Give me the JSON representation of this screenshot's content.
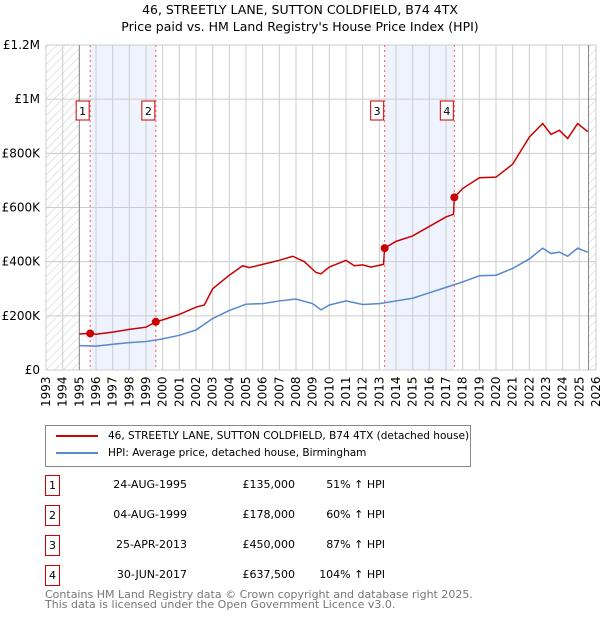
{
  "chart_data": {
    "type": "line",
    "title": "46, STREETLY LANE, SUTTON COLDFIELD, B74 4TX",
    "subtitle": "Price paid vs. HM Land Registry's House Price Index (HPI)",
    "xlim": [
      1993,
      2026
    ],
    "ylim": [
      0,
      1200000
    ],
    "x_ticks": [
      "1993",
      "1994",
      "1995",
      "1996",
      "1997",
      "1998",
      "1999",
      "2000",
      "2001",
      "2002",
      "2003",
      "2004",
      "2005",
      "2006",
      "2007",
      "2008",
      "2009",
      "2010",
      "2011",
      "2012",
      "2013",
      "2014",
      "2015",
      "2016",
      "2017",
      "2018",
      "2019",
      "2020",
      "2021",
      "2022",
      "2023",
      "2024",
      "2025",
      "2026"
    ],
    "y_ticks": [
      {
        "v": 0,
        "label": "£0"
      },
      {
        "v": 200000,
        "label": "£200K"
      },
      {
        "v": 400000,
        "label": "£400K"
      },
      {
        "v": 600000,
        "label": "£600K"
      },
      {
        "v": 800000,
        "label": "£800K"
      },
      {
        "v": 1000000,
        "label": "£1M"
      },
      {
        "v": 1200000,
        "label": "£1.2M"
      }
    ],
    "grid": true,
    "series": [
      {
        "name": "46, STREETLY LANE, SUTTON COLDFIELD, B74 4TX (detached house)",
        "color": "#cc0000",
        "points": [
          [
            1995.0,
            133000
          ],
          [
            1995.65,
            135000
          ],
          [
            1996,
            132000
          ],
          [
            1997,
            140000
          ],
          [
            1998,
            150000
          ],
          [
            1999,
            158000
          ],
          [
            1999.6,
            178000
          ],
          [
            2000,
            185000
          ],
          [
            2001,
            205000
          ],
          [
            2002,
            232000
          ],
          [
            2002.5,
            240000
          ],
          [
            2003,
            300000
          ],
          [
            2004,
            350000
          ],
          [
            2004.8,
            385000
          ],
          [
            2005.2,
            378000
          ],
          [
            2006,
            390000
          ],
          [
            2007,
            405000
          ],
          [
            2007.8,
            420000
          ],
          [
            2008.5,
            400000
          ],
          [
            2009.2,
            360000
          ],
          [
            2009.5,
            355000
          ],
          [
            2010,
            380000
          ],
          [
            2011,
            405000
          ],
          [
            2011.5,
            385000
          ],
          [
            2012,
            388000
          ],
          [
            2012.5,
            380000
          ],
          [
            2013.25,
            390000
          ],
          [
            2013.32,
            450000
          ],
          [
            2014,
            475000
          ],
          [
            2015,
            495000
          ],
          [
            2016,
            530000
          ],
          [
            2017,
            565000
          ],
          [
            2017.45,
            575000
          ],
          [
            2017.5,
            637500
          ],
          [
            2018,
            670000
          ],
          [
            2019,
            710000
          ],
          [
            2020,
            712000
          ],
          [
            2021,
            760000
          ],
          [
            2022,
            860000
          ],
          [
            2022.8,
            910000
          ],
          [
            2023.3,
            870000
          ],
          [
            2023.8,
            885000
          ],
          [
            2024.3,
            855000
          ],
          [
            2024.9,
            910000
          ],
          [
            2025.5,
            880000
          ]
        ]
      },
      {
        "name": "HPI: Average price, detached house, Birmingham",
        "color": "#5588cc",
        "points": [
          [
            1995.0,
            90000
          ],
          [
            1996,
            88000
          ],
          [
            1997,
            95000
          ],
          [
            1998,
            101000
          ],
          [
            1999,
            105000
          ],
          [
            2000,
            115000
          ],
          [
            2001,
            128000
          ],
          [
            2002,
            148000
          ],
          [
            2003,
            190000
          ],
          [
            2004,
            220000
          ],
          [
            2005,
            243000
          ],
          [
            2006,
            245000
          ],
          [
            2007,
            255000
          ],
          [
            2008,
            262000
          ],
          [
            2009,
            245000
          ],
          [
            2009.5,
            222000
          ],
          [
            2010,
            240000
          ],
          [
            2011,
            255000
          ],
          [
            2012,
            242000
          ],
          [
            2013,
            245000
          ],
          [
            2014,
            255000
          ],
          [
            2015,
            265000
          ],
          [
            2016,
            285000
          ],
          [
            2017,
            305000
          ],
          [
            2018,
            325000
          ],
          [
            2019,
            348000
          ],
          [
            2020,
            350000
          ],
          [
            2021,
            375000
          ],
          [
            2022,
            410000
          ],
          [
            2022.8,
            450000
          ],
          [
            2023.3,
            430000
          ],
          [
            2023.8,
            435000
          ],
          [
            2024.3,
            420000
          ],
          [
            2024.9,
            450000
          ],
          [
            2025.5,
            435000
          ]
        ]
      }
    ],
    "sales": [
      {
        "n": "1",
        "x": 1995.65,
        "y": 135000
      },
      {
        "n": "2",
        "x": 1999.59,
        "y": 178000
      },
      {
        "n": "3",
        "x": 2013.32,
        "y": 450000
      },
      {
        "n": "4",
        "x": 2017.5,
        "y": 637500
      }
    ]
  },
  "legend": {
    "red": "46, STREETLY LANE, SUTTON COLDFIELD, B74 4TX (detached house)",
    "blue": "HPI: Average price, detached house, Birmingham"
  },
  "table": [
    {
      "n": "1",
      "date": "24-AUG-1995",
      "price": "£135,000",
      "hpi": "51% ↑ HPI"
    },
    {
      "n": "2",
      "date": "04-AUG-1999",
      "price": "£178,000",
      "hpi": "60% ↑ HPI"
    },
    {
      "n": "3",
      "date": "25-APR-2013",
      "price": "£450,000",
      "hpi": "87% ↑ HPI"
    },
    {
      "n": "4",
      "date": "30-JUN-2017",
      "price": "£637,500",
      "hpi": "104% ↑ HPI"
    }
  ],
  "footer": {
    "line1": "Contains HM Land Registry data © Crown copyright and database right 2025.",
    "line2": "This data is licensed under the Open Government Licence v3.0."
  }
}
